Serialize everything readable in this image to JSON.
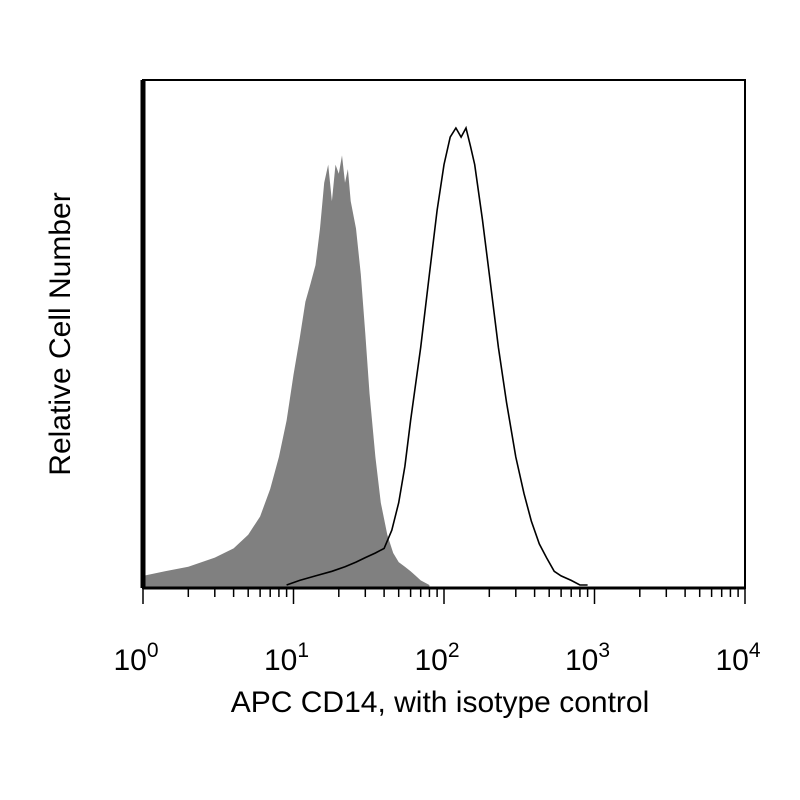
{
  "chart_data": {
    "type": "area",
    "xlabel": "APC CD14, with isotype control",
    "ylabel": "Relative Cell Number",
    "x_scale": "log",
    "xlim": [
      1,
      10000
    ],
    "ylim": [
      0,
      100
    ],
    "x_ticks": [
      {
        "base": "10",
        "exp": "0"
      },
      {
        "base": "10",
        "exp": "1"
      },
      {
        "base": "10",
        "exp": "2"
      },
      {
        "base": "10",
        "exp": "3"
      },
      {
        "base": "10",
        "exp": "4"
      }
    ],
    "grid": false,
    "legend": "none",
    "series": [
      {
        "style": "filled",
        "color": "#808080",
        "x": [
          1,
          1.4,
          2,
          3,
          4,
          5,
          6,
          7,
          8,
          9,
          10,
          11,
          12,
          13,
          14,
          15,
          16,
          17,
          18,
          19,
          20,
          21,
          22,
          23,
          24,
          26,
          28,
          30,
          32,
          35,
          38,
          42,
          46,
          50,
          55,
          60,
          65,
          70,
          80
        ],
        "y": [
          2,
          3,
          4,
          6,
          8,
          11,
          15,
          21,
          28,
          36,
          46,
          54,
          62,
          66,
          70,
          78,
          88,
          92,
          84,
          92,
          90,
          94,
          88,
          91,
          84,
          78,
          68,
          55,
          42,
          28,
          18,
          11,
          7,
          5,
          4,
          3,
          2,
          1,
          0
        ]
      },
      {
        "style": "outline",
        "color": "#000000",
        "x": [
          9,
          11,
          14,
          18,
          22,
          26,
          30,
          35,
          40,
          45,
          50,
          55,
          60,
          70,
          80,
          90,
          100,
          110,
          120,
          130,
          140,
          150,
          160,
          180,
          200,
          230,
          260,
          300,
          340,
          380,
          430,
          480,
          540,
          600,
          700,
          800,
          900
        ],
        "y": [
          0,
          1,
          2,
          3,
          4,
          5,
          6,
          7,
          8,
          12,
          18,
          26,
          36,
          52,
          68,
          82,
          92,
          98,
          100,
          98,
          100,
          96,
          92,
          80,
          68,
          52,
          40,
          28,
          20,
          14,
          9,
          6,
          3,
          2,
          1,
          0,
          0
        ]
      }
    ]
  }
}
